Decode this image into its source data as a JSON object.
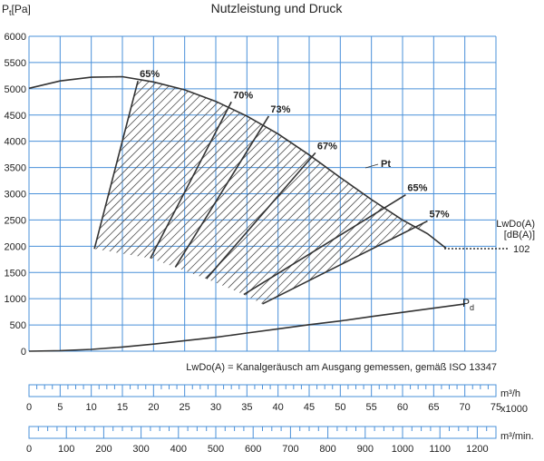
{
  "chart_data": {
    "type": "line",
    "title": "Nutzleistung und Druck",
    "y_axis": {
      "label_main": "P",
      "label_sub": "t",
      "label_unit": "[Pa]",
      "range": [
        0,
        6000
      ],
      "ticks": [
        "0",
        "500",
        "1000",
        "1500",
        "2000",
        "2500",
        "3000",
        "3500",
        "4000",
        "4500",
        "5000",
        "5500",
        "6000"
      ]
    },
    "x_axis": {
      "range": [
        0,
        75
      ],
      "unit_note": "x1000"
    },
    "series": [
      {
        "name": "Pt",
        "x": [
          0,
          5,
          10,
          15,
          20,
          25,
          30,
          35,
          40,
          45,
          50,
          55,
          60,
          64,
          67
        ],
        "y": [
          5010,
          5150,
          5220,
          5230,
          5130,
          4980,
          4760,
          4480,
          4140,
          3740,
          3310,
          2890,
          2500,
          2240,
          1960
        ]
      },
      {
        "name": "Pd",
        "x": [
          0,
          5,
          10,
          15,
          20,
          25,
          30,
          35,
          40,
          45,
          50,
          55,
          60,
          65,
          70
        ],
        "y": [
          0,
          10,
          35,
          80,
          135,
          200,
          265,
          345,
          425,
          505,
          575,
          660,
          740,
          820,
          900
        ]
      }
    ],
    "efficiency_lines": [
      {
        "label": "65%",
        "x": [
          10.5,
          17.5
        ],
        "y": [
          1950,
          5150
        ]
      },
      {
        "label": "70%",
        "x": [
          19.5,
          32.5
        ],
        "y": [
          1770,
          4750
        ]
      },
      {
        "label": "73%",
        "x": [
          23.5,
          38.5
        ],
        "y": [
          1600,
          4480
        ]
      },
      {
        "label": "67%",
        "x": [
          28.5,
          46.0
        ],
        "y": [
          1380,
          3780
        ]
      },
      {
        "label": "65%",
        "x": [
          34.5,
          60.5
        ],
        "y": [
          1080,
          2980
        ]
      },
      {
        "label": "57%",
        "x": [
          37.5,
          64.0
        ],
        "y": [
          900,
          2480
        ]
      }
    ],
    "sound": {
      "label_line1": "LwDo(A)",
      "label_line2": "[dB(A)]",
      "value": "102"
    },
    "note": "LwDo(A) = Kanalgeräusch am Ausgang gemessen, gemäß ISO 13347",
    "scale_m3h": {
      "unit": "m³/h",
      "unit2": "x1000",
      "ticks": [
        "0",
        "5",
        "10",
        "15",
        "20",
        "25",
        "30",
        "35",
        "40",
        "45",
        "50",
        "55",
        "60",
        "65",
        "70",
        "75"
      ]
    },
    "scale_m3min": {
      "unit": "m³/min.",
      "ticks": [
        "0",
        "100",
        "200",
        "300",
        "400",
        "500",
        "600",
        "700",
        "800",
        "900",
        "1000",
        "1100",
        "1200"
      ]
    },
    "grid": true,
    "curve_labels": {
      "pt": "Pt",
      "pd": "P",
      "pd_sub": "d"
    }
  }
}
